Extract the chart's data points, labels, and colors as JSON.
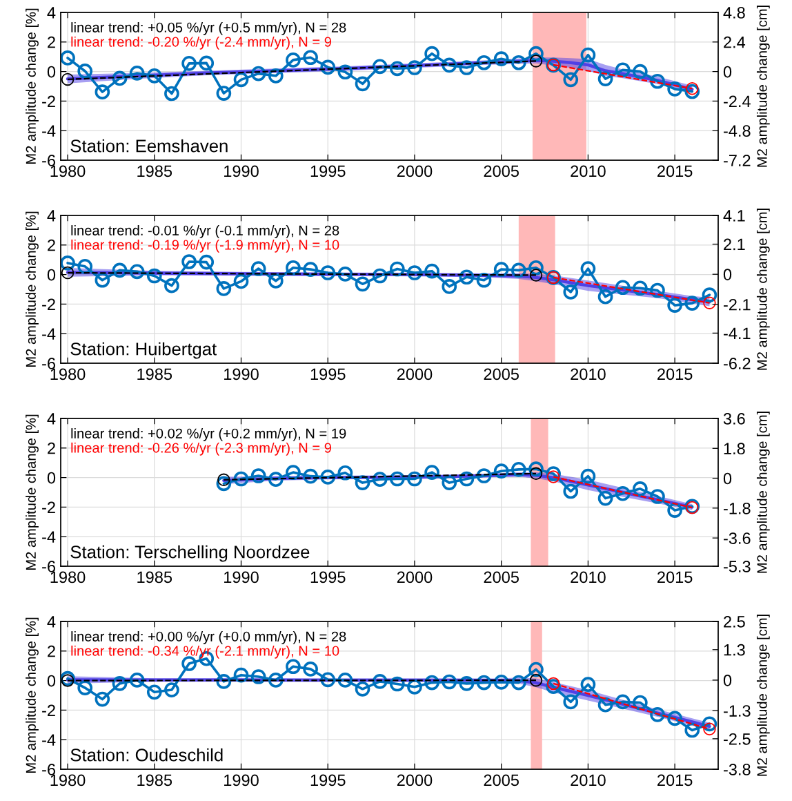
{
  "chart_data": [
    {
      "type": "line",
      "ylabel": "M2 amplitude change [%]",
      "y2label": "M2 amplitude change [cm]",
      "xlim": [
        1979.6,
        2017.5
      ],
      "xticks": [
        1980,
        1985,
        1990,
        1995,
        2000,
        2005,
        2010,
        2015
      ],
      "ylim": [
        -6,
        4
      ],
      "yticks": [
        -6,
        -4,
        -2,
        0,
        2,
        4
      ],
      "y2lim": [
        -7.2,
        4.8
      ],
      "y2ticks": [
        -7.2,
        -4.8,
        -2.4,
        0,
        2.4,
        4.8
      ],
      "grid": true,
      "legend": "top left",
      "series": [
        {
          "type": "line",
          "color": "#5040e6",
          "x": [
            1980,
            1984,
            1988,
            1992,
            1996,
            2000,
            2004,
            2007,
            2008,
            2009,
            2010,
            2011,
            2012,
            2014,
            2016
          ],
          "values": [
            -0.5,
            -0.3,
            -0.1,
            0.05,
            0.2,
            0.4,
            0.6,
            0.75,
            0.7,
            0.6,
            0.45,
            0.05,
            -0.15,
            -0.6,
            -1.2
          ],
          "lower": [
            -0.8,
            -0.5,
            -0.25,
            -0.1,
            0.05,
            0.25,
            0.45,
            0.55,
            0.4,
            0.25,
            0.05,
            -0.3,
            -0.45,
            -0.85,
            -1.45
          ],
          "upper": [
            -0.2,
            -0.1,
            0.05,
            0.2,
            0.35,
            0.55,
            0.75,
            0.95,
            0.95,
            0.9,
            0.85,
            0.45,
            0.15,
            -0.35,
            -0.95
          ]
        },
        {
          "type": "line",
          "color": "#0072bd",
          "marker": "circle",
          "x": [
            1980,
            1981,
            1982,
            1983,
            1984,
            1985,
            1986,
            1987,
            1988,
            1989,
            1990,
            1991,
            1992,
            1993,
            1994,
            1995,
            1996,
            1997,
            1998,
            1999,
            2000,
            2001,
            2002,
            2003,
            2004,
            2005,
            2006,
            2007,
            2008,
            2009,
            2010,
            2011,
            2012,
            2013,
            2014,
            2015,
            2016
          ],
          "values": [
            0.92,
            0.03,
            -1.38,
            -0.46,
            -0.11,
            -0.29,
            -1.49,
            0.55,
            0.57,
            -1.47,
            -0.55,
            -0.14,
            -0.29,
            0.78,
            0.95,
            0.29,
            -0.03,
            -0.83,
            0.34,
            0.2,
            0.26,
            1.21,
            0.43,
            0.26,
            0.6,
            0.86,
            0.6,
            1.21,
            0.43,
            -0.55,
            1.12,
            -0.49,
            0.11,
            0,
            -0.66,
            -1.18,
            -1.35
          ]
        },
        {
          "type": "line",
          "name": "linear trend: +0.05 %/yr (+0.5 mm/yr), N = 28",
          "color": "#000000",
          "line_style": "dashed",
          "marker": "circle",
          "x": [
            1980,
            2007
          ],
          "values": [
            -0.53,
            0.71
          ]
        },
        {
          "type": "line",
          "name": "linear trend: -0.20 %/yr (-2.4 mm/yr), N = 9",
          "color": "#ff0000",
          "line_style": "dashed",
          "marker": "circle",
          "x": [
            2008,
            2016
          ],
          "values": [
            0.45,
            -1.15
          ]
        }
      ],
      "bands": [
        {
          "axis": "x",
          "from": 2006.8,
          "to": 2009.9,
          "color": "#ffb8b8"
        }
      ],
      "annotations": [
        "Station: Eemshaven"
      ]
    },
    {
      "type": "line",
      "ylabel": "M2 amplitude change [%]",
      "y2label": "M2 amplitude change [cm]",
      "xlim": [
        1979.6,
        2017.5
      ],
      "xticks": [
        1980,
        1985,
        1990,
        1995,
        2000,
        2005,
        2010,
        2015
      ],
      "ylim": [
        -6,
        4
      ],
      "yticks": [
        -6,
        -4,
        -2,
        0,
        2,
        4
      ],
      "y2lim": [
        -6.2,
        4.1
      ],
      "y2ticks": [
        -6.2,
        -4.1,
        -2.1,
        0,
        2.1,
        4.1
      ],
      "grid": true,
      "legend": "top left",
      "series": [
        {
          "type": "line",
          "color": "#5040e6",
          "x": [
            1980,
            1985,
            1990,
            1995,
            2000,
            2004,
            2006,
            2007,
            2008,
            2010,
            2012,
            2014,
            2016,
            2017
          ],
          "values": [
            0.15,
            0.1,
            0.05,
            0.02,
            0.0,
            -0.05,
            -0.1,
            -0.2,
            -0.35,
            -0.75,
            -1.05,
            -1.35,
            -1.7,
            -1.85
          ],
          "lower": [
            -0.15,
            -0.05,
            -0.08,
            -0.1,
            -0.12,
            -0.18,
            -0.3,
            -0.45,
            -0.65,
            -1.1,
            -1.35,
            -1.6,
            -1.95,
            -2.15
          ],
          "upper": [
            0.45,
            0.25,
            0.18,
            0.14,
            0.12,
            0.08,
            0.1,
            0.05,
            -0.05,
            -0.4,
            -0.75,
            -1.1,
            -1.45,
            -1.55
          ]
        },
        {
          "type": "line",
          "color": "#0072bd",
          "marker": "circle",
          "x": [
            1980,
            1981,
            1982,
            1983,
            1984,
            1985,
            1986,
            1987,
            1988,
            1989,
            1990,
            1991,
            1992,
            1993,
            1994,
            1995,
            1996,
            1997,
            1998,
            1999,
            2000,
            2001,
            2002,
            2003,
            2004,
            2005,
            2006,
            2007,
            2008,
            2009,
            2010,
            2011,
            2012,
            2013,
            2014,
            2015,
            2016,
            2017
          ],
          "values": [
            0.78,
            0.55,
            -0.38,
            0.29,
            0.2,
            -0.09,
            -0.75,
            0.87,
            0.84,
            -0.95,
            -0.46,
            0.4,
            -0.43,
            0.46,
            0.35,
            0.12,
            0.03,
            -0.64,
            -0.09,
            0.38,
            0.12,
            0.23,
            -0.81,
            -0.17,
            -0.38,
            0.35,
            0.29,
            0.46,
            -0.2,
            -1.18,
            0.4,
            -1.5,
            -0.87,
            -0.92,
            -1.07,
            -2.08,
            -1.94,
            -1.38
          ]
        },
        {
          "type": "line",
          "name": "linear trend: -0.01 %/yr (-0.1 mm/yr), N = 28",
          "color": "#000000",
          "line_style": "dashed",
          "marker": "circle",
          "x": [
            1980,
            2007
          ],
          "values": [
            0.12,
            -0.04
          ]
        },
        {
          "type": "line",
          "name": "linear trend: -0.19 %/yr (-1.9 mm/yr), N = 10",
          "color": "#ff0000",
          "line_style": "dashed",
          "marker": "circle",
          "x": [
            2008,
            2017
          ],
          "values": [
            -0.2,
            -1.92
          ]
        }
      ],
      "bands": [
        {
          "axis": "x",
          "from": 2006.0,
          "to": 2008.1,
          "color": "#ffb8b8"
        }
      ],
      "annotations": [
        "Station: Huibertgat"
      ]
    },
    {
      "type": "line",
      "ylabel": "M2 amplitude change [%]",
      "y2label": "M2 amplitude change [cm]",
      "xlim": [
        1979.6,
        2017.5
      ],
      "xticks": [
        1980,
        1985,
        1990,
        1995,
        2000,
        2005,
        2010,
        2015
      ],
      "ylim": [
        -6,
        4
      ],
      "yticks": [
        -6,
        -4,
        -2,
        0,
        2,
        4
      ],
      "y2lim": [
        -5.3,
        3.6
      ],
      "y2ticks": [
        -5.3,
        -3.6,
        -1.8,
        0,
        1.8,
        3.6
      ],
      "grid": true,
      "legend": "top left",
      "series": [
        {
          "type": "line",
          "color": "#5040e6",
          "x": [
            1989,
            1992,
            1995,
            1998,
            2001,
            2004,
            2006,
            2007,
            2008,
            2010,
            2012,
            2014,
            2016
          ],
          "values": [
            -0.2,
            -0.05,
            0.0,
            0.02,
            0.05,
            0.12,
            0.2,
            0.15,
            0.0,
            -0.5,
            -1.0,
            -1.5,
            -2.0
          ],
          "lower": [
            -0.45,
            -0.2,
            -0.12,
            -0.1,
            -0.08,
            0.0,
            0.05,
            -0.05,
            -0.25,
            -0.85,
            -1.3,
            -1.75,
            -2.2
          ],
          "upper": [
            0.05,
            0.1,
            0.12,
            0.14,
            0.18,
            0.25,
            0.35,
            0.35,
            0.25,
            -0.15,
            -0.7,
            -1.25,
            -1.8
          ]
        },
        {
          "type": "line",
          "color": "#0072bd",
          "marker": "circle",
          "x": [
            1989,
            1990,
            1991,
            1992,
            1993,
            1994,
            1995,
            1996,
            1997,
            1998,
            1999,
            2000,
            2001,
            2002,
            2003,
            2004,
            2005,
            2006,
            2007,
            2008,
            2009,
            2010,
            2011,
            2012,
            2013,
            2014,
            2015,
            2016
          ],
          "values": [
            -0.41,
            -0.09,
            0.12,
            -0.12,
            0.35,
            0.09,
            0.03,
            0.32,
            -0.35,
            -0.12,
            -0.09,
            -0.09,
            0.35,
            -0.35,
            -0.09,
            0.12,
            0.44,
            0.55,
            0.58,
            0.26,
            -0.93,
            0.09,
            -1.4,
            -1.08,
            -0.76,
            -1.28,
            -2.22,
            -1.95
          ]
        },
        {
          "type": "line",
          "name": "linear trend: +0.02 %/yr (+0.2 mm/yr), N = 19",
          "color": "#000000",
          "line_style": "dashed",
          "marker": "circle",
          "x": [
            1989,
            2007
          ],
          "values": [
            -0.15,
            0.27
          ]
        },
        {
          "type": "line",
          "name": "linear trend: -0.26 %/yr (-2.3 mm/yr), N = 9",
          "color": "#ff0000",
          "line_style": "dashed",
          "marker": "circle",
          "x": [
            2008,
            2016
          ],
          "values": [
            0.05,
            -2.03
          ]
        }
      ],
      "bands": [
        {
          "axis": "x",
          "from": 2006.7,
          "to": 2007.7,
          "color": "#ffb8b8"
        }
      ],
      "annotations": [
        "Station: Terschelling Noordzee"
      ]
    },
    {
      "type": "line",
      "ylabel": "M2 amplitude change [%]",
      "y2label": "M2 amplitude change [cm]",
      "xlim": [
        1979.6,
        2017.5
      ],
      "xticks": [
        1980,
        1985,
        1990,
        1995,
        2000,
        2005,
        2010,
        2015
      ],
      "ylim": [
        -6,
        4
      ],
      "yticks": [
        -6,
        -4,
        -2,
        0,
        2,
        4
      ],
      "y2lim": [
        -3.8,
        2.5
      ],
      "y2ticks": [
        -3.8,
        -2.5,
        -1.3,
        0,
        1.3,
        2.5
      ],
      "grid": true,
      "legend": "top left",
      "series": [
        {
          "type": "line",
          "color": "#5040e6",
          "x": [
            1980,
            1985,
            1990,
            1995,
            2000,
            2005,
            2006,
            2007,
            2008,
            2010,
            2012,
            2014,
            2016,
            2017
          ],
          "values": [
            0.05,
            0.04,
            0.04,
            0.03,
            0.03,
            0.02,
            0.0,
            -0.15,
            -0.45,
            -1.0,
            -1.6,
            -2.2,
            -2.8,
            -3.1
          ],
          "lower": [
            -0.2,
            -0.08,
            -0.08,
            -0.08,
            -0.08,
            -0.1,
            -0.2,
            -0.45,
            -0.8,
            -1.35,
            -1.9,
            -2.45,
            -3.05,
            -3.35
          ],
          "upper": [
            0.3,
            0.16,
            0.16,
            0.14,
            0.14,
            0.14,
            0.2,
            0.15,
            -0.1,
            -0.65,
            -1.3,
            -1.95,
            -2.55,
            -2.85
          ]
        },
        {
          "type": "line",
          "color": "#0072bd",
          "marker": "circle",
          "x": [
            1980,
            1981,
            1982,
            1983,
            1984,
            1985,
            1986,
            1987,
            1988,
            1989,
            1990,
            1991,
            1992,
            1993,
            1994,
            1995,
            1996,
            1997,
            1998,
            1999,
            2000,
            2001,
            2002,
            2003,
            2004,
            2005,
            2006,
            2007,
            2008,
            2009,
            2010,
            2011,
            2012,
            2013,
            2014,
            2015,
            2016,
            2017
          ],
          "values": [
            0.14,
            -0.49,
            -1.26,
            -0.2,
            0.03,
            -0.78,
            -0.63,
            1.15,
            1.49,
            -0.06,
            0.37,
            0.26,
            0.03,
            0.95,
            0.78,
            0.06,
            0.03,
            -0.57,
            -0.06,
            -0.23,
            -0.43,
            -0.14,
            -0.09,
            -0.2,
            -0.14,
            -0.11,
            -0.14,
            0.75,
            -0.4,
            -1.44,
            -0.26,
            -1.64,
            -1.44,
            -1.49,
            -2.3,
            -2.56,
            -3.36,
            -2.93
          ]
        },
        {
          "type": "line",
          "name": "linear trend: +0.00 %/yr (+0.0 mm/yr), N = 28",
          "color": "#000000",
          "line_style": "dashed",
          "marker": "circle",
          "x": [
            1980,
            2007
          ],
          "values": [
            0.0,
            0.02
          ]
        },
        {
          "type": "line",
          "name": "linear trend: -0.34 %/yr (-2.1 mm/yr), N = 10",
          "color": "#ff0000",
          "line_style": "dashed",
          "marker": "circle",
          "x": [
            2008,
            2017
          ],
          "values": [
            -0.2,
            -3.28
          ]
        }
      ],
      "bands": [
        {
          "axis": "x",
          "from": 2006.7,
          "to": 2007.35,
          "color": "#ffb8b8"
        }
      ],
      "annotations": [
        "Station: Oudeschild"
      ]
    }
  ]
}
